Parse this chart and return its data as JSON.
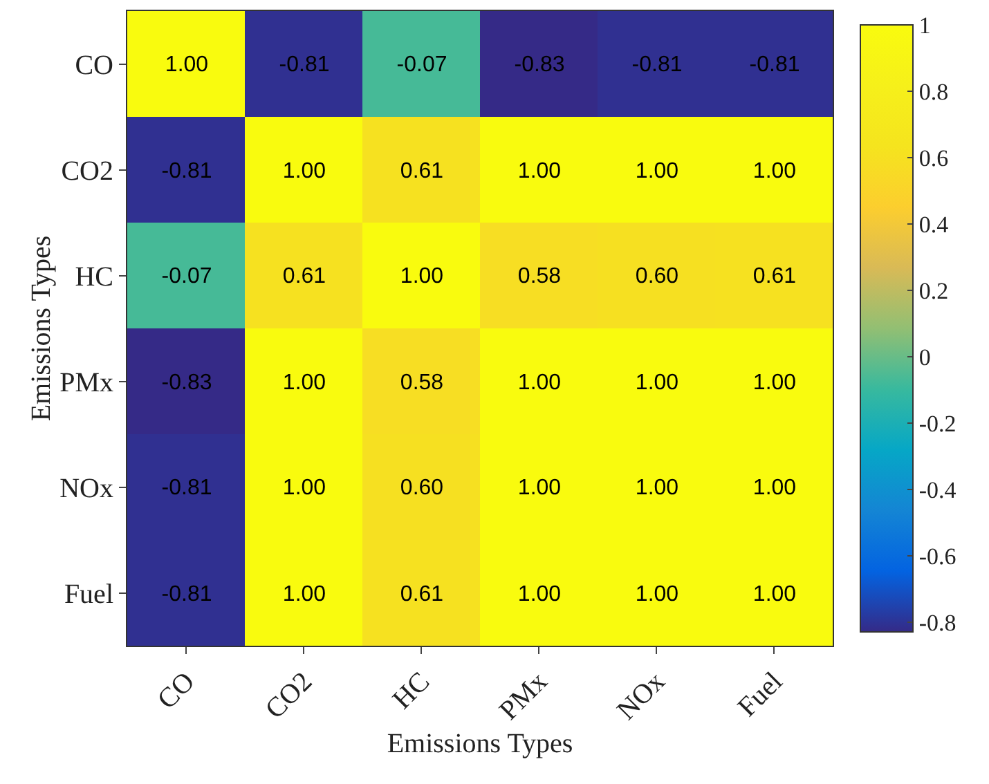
{
  "chart_data": {
    "type": "heatmap",
    "xlabel": "Emissions Types",
    "ylabel": "Emissions Types",
    "categories": [
      "CO",
      "CO2",
      "HC",
      "PMx",
      "NOx",
      "Fuel"
    ],
    "y_categories": [
      "CO",
      "CO2",
      "HC",
      "PMx",
      "NOx",
      "Fuel"
    ],
    "cells": [
      [
        1.0,
        -0.81,
        -0.07,
        -0.83,
        -0.81,
        -0.81
      ],
      [
        -0.81,
        1.0,
        0.61,
        1.0,
        1.0,
        1.0
      ],
      [
        -0.07,
        0.61,
        1.0,
        0.58,
        0.6,
        0.61
      ],
      [
        -0.83,
        1.0,
        0.58,
        1.0,
        1.0,
        1.0
      ],
      [
        -0.81,
        1.0,
        0.6,
        1.0,
        1.0,
        1.0
      ],
      [
        -0.81,
        1.0,
        0.61,
        1.0,
        1.0,
        1.0
      ]
    ],
    "cell_labels": [
      [
        "1.00",
        "-0.81",
        "-0.07",
        "-0.83",
        "-0.81",
        "-0.81"
      ],
      [
        "-0.81",
        "1.00",
        "0.61",
        "1.00",
        "1.00",
        "1.00"
      ],
      [
        "-0.07",
        "0.61",
        "1.00",
        "0.58",
        "0.60",
        "0.61"
      ],
      [
        "-0.83",
        "1.00",
        "0.58",
        "1.00",
        "1.00",
        "1.00"
      ],
      [
        "-0.81",
        "1.00",
        "0.60",
        "1.00",
        "1.00",
        "1.00"
      ],
      [
        "-0.81",
        "1.00",
        "0.61",
        "1.00",
        "1.00",
        "1.00"
      ]
    ],
    "clim": [
      -0.83,
      1
    ],
    "cticks": [
      -0.8,
      -0.6,
      -0.4,
      -0.2,
      0,
      0.2,
      0.4,
      0.6,
      0.8,
      1
    ]
  }
}
